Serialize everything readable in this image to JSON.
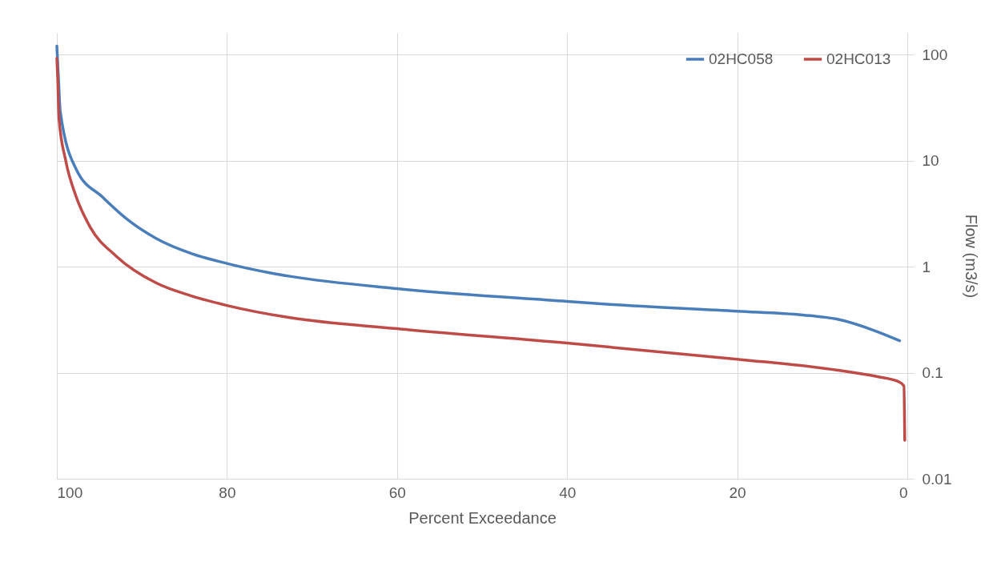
{
  "chart_data": {
    "type": "line",
    "xlabel": "Percent Exceedance",
    "ylabel": "Flow (m3/s)",
    "xlim": [
      100,
      0
    ],
    "xticks": [
      100,
      80,
      60,
      40,
      20,
      0
    ],
    "ylim": [
      0.01,
      160
    ],
    "yticks": [
      0.01,
      0.1,
      1,
      10,
      100
    ],
    "log": "y",
    "grid": true,
    "legend": "top right",
    "line_style": "solid",
    "marker": "none",
    "series": [
      {
        "name": "02HC058",
        "color": "#4a7ebb",
        "x": [
          100,
          99.8,
          99.6,
          97.7,
          94.6,
          91.4,
          88.3,
          84.2,
          80,
          74.5,
          72.6,
          60,
          40,
          35,
          20,
          12.3,
          8.3,
          3.9,
          0.9
        ],
        "values": [
          120,
          57,
          29,
          8.2,
          4.5,
          2.66,
          1.84,
          1.33,
          1.07,
          0.86,
          0.81,
          0.62,
          0.47,
          0.44,
          0.38,
          0.35,
          0.32,
          0.25,
          0.2
        ]
      },
      {
        "name": "02HC013",
        "color": "#be4b48",
        "x": [
          100,
          99.9,
          99.75,
          98.96,
          97.7,
          96.1,
          93,
          88.3,
          84.2,
          80,
          72.6,
          60,
          40,
          20,
          8.3,
          3.6,
          1,
          0.4,
          0.3
        ],
        "values": [
          92,
          60,
          25,
          10,
          4.5,
          2.37,
          1.25,
          0.7,
          0.53,
          0.43,
          0.33,
          0.26,
          0.19,
          0.134,
          0.106,
          0.092,
          0.082,
          0.075,
          0.023
        ]
      }
    ]
  }
}
